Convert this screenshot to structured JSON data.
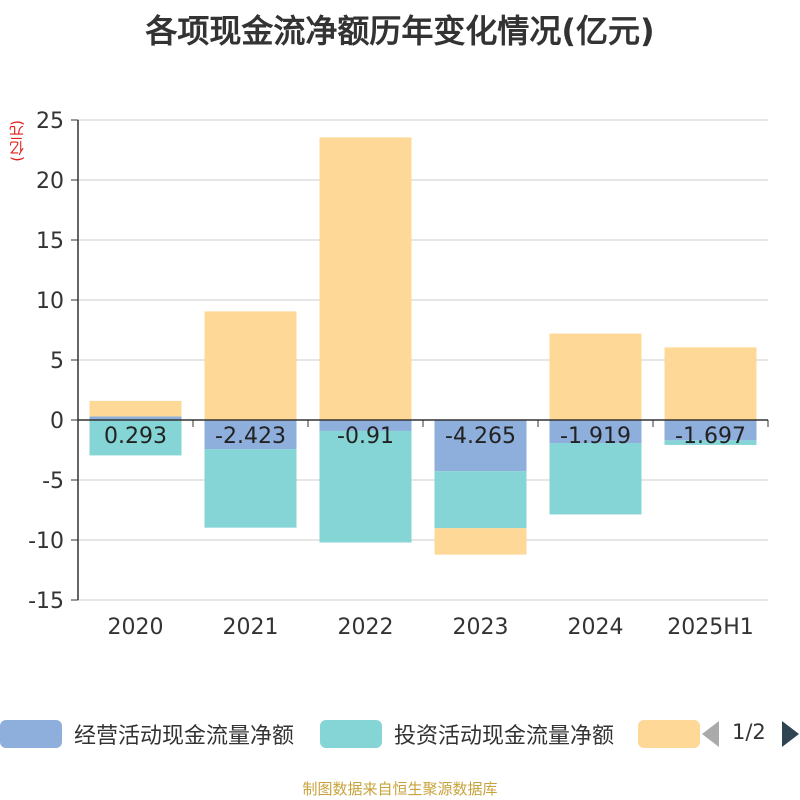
{
  "title": "各项现金流净额历年变化情况(亿元)",
  "unit_label": "(亿元)",
  "source": "制图数据来自恒生聚源数据库",
  "legend": {
    "items": [
      {
        "label": "经营活动现金流量净额",
        "color": "#8eaedc"
      },
      {
        "label": "投资活动现金流量净额",
        "color": "#85d4d6"
      },
      {
        "label": "",
        "color": "#fed897"
      }
    ],
    "page": "1/2"
  },
  "chart_data": {
    "type": "bar",
    "stacked": true,
    "categories": [
      "2020",
      "2021",
      "2022",
      "2023",
      "2024",
      "2025H1"
    ],
    "ylim": [
      -15,
      25
    ],
    "yticks": [
      25,
      20,
      15,
      10,
      5,
      0,
      -5,
      -10,
      -15
    ],
    "grid": true,
    "legend_position": "bottom",
    "series": [
      {
        "name": "经营活动现金流量净额",
        "color": "#8eaedc",
        "values": [
          0.293,
          -2.423,
          -0.91,
          -4.265,
          -1.919,
          -1.697
        ],
        "labels": [
          "0.293",
          "-2.423",
          "-0.91",
          "-4.265",
          "-1.919",
          "-1.697"
        ]
      },
      {
        "name": "投资活动现金流量净额",
        "color": "#85d4d6",
        "values": [
          -2.95,
          -6.55,
          -9.3,
          -4.75,
          -5.95,
          -0.38
        ]
      },
      {
        "color": "#fed897",
        "values": [
          1.3,
          9.05,
          23.55,
          -2.2,
          7.2,
          6.05
        ]
      }
    ]
  }
}
